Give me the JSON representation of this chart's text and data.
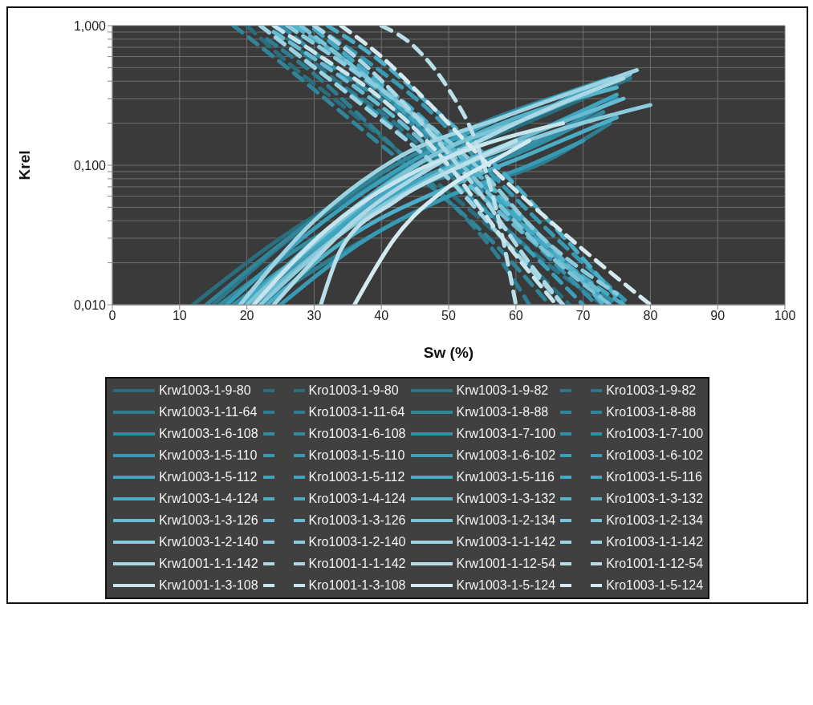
{
  "chart_data": {
    "type": "line",
    "xlabel": "Sw (%)",
    "ylabel": "Krel",
    "log": "y",
    "grid": true,
    "legend": "bottom",
    "marker": "none",
    "xlim": [
      0,
      100
    ],
    "xticks": [
      0,
      10,
      20,
      30,
      40,
      50,
      60,
      70,
      80,
      90,
      100
    ],
    "ylim": [
      0.01,
      1
    ],
    "yticks": [
      {
        "value": 0.01,
        "label": "0,010"
      },
      {
        "value": 0.02,
        "label": null
      },
      {
        "value": 0.03,
        "label": null
      },
      {
        "value": 0.04,
        "label": null
      },
      {
        "value": 0.05,
        "label": null
      },
      {
        "value": 0.06,
        "label": null
      },
      {
        "value": 0.07,
        "label": null
      },
      {
        "value": 0.08,
        "label": null
      },
      {
        "value": 0.09,
        "label": null
      },
      {
        "value": 0.1,
        "label": "0,100"
      },
      {
        "value": 0.2,
        "label": null
      },
      {
        "value": 0.3,
        "label": null
      },
      {
        "value": 0.4,
        "label": null
      },
      {
        "value": 0.5,
        "label": null
      },
      {
        "value": 0.6,
        "label": null
      },
      {
        "value": 0.7,
        "label": null
      },
      {
        "value": 0.8,
        "label": null
      },
      {
        "value": 0.9,
        "label": null
      },
      {
        "value": 1,
        "label": "1,000"
      }
    ],
    "series": [
      {
        "name": "Krw1003-1-9-80",
        "color": "#2a6e7e",
        "line_style": "solid",
        "x": [
          12,
          25,
          40,
          55,
          76
        ],
        "values": [
          0.01,
          0.03,
          0.08,
          0.15,
          0.4
        ]
      },
      {
        "name": "Kro1003-1-9-80",
        "color": "#2a6e7e",
        "line_style": "dashed",
        "x": [
          20,
          27,
          35,
          45,
          55,
          68
        ],
        "values": [
          1,
          0.5,
          0.25,
          0.1,
          0.04,
          0.01
        ]
      },
      {
        "name": "Krw1003-1-9-82",
        "color": "#2d7687",
        "line_style": "solid",
        "x": [
          15,
          30,
          45,
          60,
          77
        ],
        "values": [
          0.01,
          0.04,
          0.1,
          0.2,
          0.42
        ]
      },
      {
        "name": "Kro1003-1-9-82",
        "color": "#2d7687",
        "line_style": "dashed",
        "x": [
          24,
          32,
          42,
          52,
          62,
          73
        ],
        "values": [
          1,
          0.45,
          0.2,
          0.07,
          0.025,
          0.01
        ]
      },
      {
        "name": "Krw1003-1-11-64",
        "color": "#2f7d90",
        "line_style": "solid",
        "x": [
          22,
          35,
          50,
          65,
          74
        ],
        "values": [
          0.01,
          0.025,
          0.06,
          0.11,
          0.2
        ]
      },
      {
        "name": "Kro1003-1-11-64",
        "color": "#2f7d90",
        "line_style": "dashed",
        "x": [
          23,
          30,
          38,
          48,
          58,
          62
        ],
        "values": [
          0.8,
          0.45,
          0.2,
          0.07,
          0.02,
          0.01
        ]
      },
      {
        "name": "Krw1003-1-8-88",
        "color": "#318598",
        "line_style": "solid",
        "x": [
          14,
          28,
          42,
          55,
          72
        ],
        "values": [
          0.01,
          0.035,
          0.1,
          0.2,
          0.38
        ]
      },
      {
        "name": "Kro1003-1-8-88",
        "color": "#318598",
        "line_style": "dashed",
        "x": [
          18,
          26,
          36,
          46,
          56,
          65
        ],
        "values": [
          1,
          0.5,
          0.2,
          0.08,
          0.03,
          0.01
        ]
      },
      {
        "name": "Krw1003-1-6-108",
        "color": "#338ca0",
        "line_style": "solid",
        "x": [
          16,
          30,
          45,
          60,
          73
        ],
        "values": [
          0.01,
          0.03,
          0.07,
          0.12,
          0.24
        ]
      },
      {
        "name": "Kro1003-1-6-108",
        "color": "#338ca0",
        "line_style": "dashed",
        "x": [
          28,
          36,
          45,
          55,
          65,
          75
        ],
        "values": [
          1,
          0.5,
          0.2,
          0.07,
          0.025,
          0.01
        ]
      },
      {
        "name": "Krw1003-1-7-100",
        "color": "#3591a8",
        "line_style": "solid",
        "x": [
          18,
          32,
          48,
          62,
          75
        ],
        "values": [
          0.01,
          0.03,
          0.08,
          0.14,
          0.3
        ]
      },
      {
        "name": "Kro1003-1-7-100",
        "color": "#3591a8",
        "line_style": "dashed",
        "x": [
          25,
          33,
          42,
          52,
          62,
          72
        ],
        "values": [
          1,
          0.5,
          0.25,
          0.09,
          0.03,
          0.01
        ]
      },
      {
        "name": "Krw1003-1-5-110",
        "color": "#3899b2",
        "line_style": "solid",
        "x": [
          25,
          38,
          50,
          62,
          70
        ],
        "values": [
          0.01,
          0.03,
          0.06,
          0.1,
          0.15
        ]
      },
      {
        "name": "Kro1003-1-5-110",
        "color": "#3899b2",
        "line_style": "dashed",
        "x": [
          30,
          38,
          47,
          56,
          66,
          77
        ],
        "values": [
          1,
          0.55,
          0.25,
          0.09,
          0.03,
          0.01
        ]
      },
      {
        "name": "Krw1003-1-6-102",
        "color": "#3a9fb9",
        "line_style": "solid",
        "x": [
          17,
          30,
          45,
          58,
          74
        ],
        "values": [
          0.01,
          0.035,
          0.11,
          0.22,
          0.42
        ]
      },
      {
        "name": "Kro1003-1-6-102",
        "color": "#3a9fb9",
        "line_style": "dashed",
        "x": [
          22,
          30,
          40,
          50,
          60,
          70
        ],
        "values": [
          1,
          0.5,
          0.22,
          0.08,
          0.03,
          0.01
        ]
      },
      {
        "name": "Krw1003-1-5-112",
        "color": "#3ea5bf",
        "line_style": "solid",
        "x": [
          20,
          32,
          46,
          60,
          75
        ],
        "values": [
          0.01,
          0.03,
          0.08,
          0.15,
          0.32
        ]
      },
      {
        "name": "Kro1003-1-5-112",
        "color": "#3ea5bf",
        "line_style": "dashed",
        "x": [
          26,
          34,
          43,
          53,
          63,
          74
        ],
        "values": [
          1,
          0.55,
          0.25,
          0.09,
          0.03,
          0.01
        ]
      },
      {
        "name": "Krw1003-1-5-116",
        "color": "#42aac4",
        "line_style": "solid",
        "x": [
          19,
          33,
          47,
          60,
          73
        ],
        "values": [
          0.01,
          0.035,
          0.1,
          0.2,
          0.4
        ]
      },
      {
        "name": "Kro1003-1-5-116",
        "color": "#42aac4",
        "line_style": "dashed",
        "x": [
          30,
          37,
          46,
          55,
          65,
          76
        ],
        "values": [
          0.95,
          0.5,
          0.22,
          0.08,
          0.025,
          0.01
        ]
      },
      {
        "name": "Krw1003-1-4-124",
        "color": "#4aaec7",
        "line_style": "solid",
        "x": [
          23,
          35,
          50,
          62,
          75
        ],
        "values": [
          0.01,
          0.03,
          0.07,
          0.12,
          0.22
        ]
      },
      {
        "name": "Kro1003-1-4-124",
        "color": "#4aaec7",
        "line_style": "dashed",
        "x": [
          32,
          40,
          48,
          57,
          66,
          76
        ],
        "values": [
          1,
          0.55,
          0.25,
          0.1,
          0.035,
          0.01
        ]
      },
      {
        "name": "Krw1003-1-3-132",
        "color": "#55b3ca",
        "line_style": "solid",
        "x": [
          20,
          32,
          45,
          58,
          75
        ],
        "values": [
          0.01,
          0.035,
          0.1,
          0.2,
          0.36
        ]
      },
      {
        "name": "Kro1003-1-3-132",
        "color": "#55b3ca",
        "line_style": "dashed",
        "x": [
          27,
          35,
          44,
          54,
          64,
          73
        ],
        "values": [
          1,
          0.55,
          0.25,
          0.09,
          0.03,
          0.01
        ]
      },
      {
        "name": "Krw1003-1-3-126",
        "color": "#68bbd0",
        "line_style": "solid",
        "x": [
          21,
          33,
          47,
          60,
          76
        ],
        "values": [
          0.01,
          0.03,
          0.08,
          0.15,
          0.3
        ]
      },
      {
        "name": "Kro1003-1-3-126",
        "color": "#68bbd0",
        "line_style": "dashed",
        "x": [
          24,
          32,
          42,
          52,
          62,
          73
        ],
        "values": [
          0.9,
          0.5,
          0.22,
          0.08,
          0.03,
          0.012
        ]
      },
      {
        "name": "Krw1003-1-2-134",
        "color": "#7bc3d6",
        "line_style": "solid",
        "x": [
          20,
          34,
          48,
          62,
          77
        ],
        "values": [
          0.01,
          0.04,
          0.12,
          0.22,
          0.45
        ]
      },
      {
        "name": "Kro1003-1-2-134",
        "color": "#7bc3d6",
        "line_style": "dashed",
        "x": [
          28,
          36,
          46,
          55,
          64,
          74
        ],
        "values": [
          1,
          0.5,
          0.2,
          0.07,
          0.025,
          0.01
        ]
      },
      {
        "name": "Krw1003-1-2-140",
        "color": "#8ccbdc",
        "line_style": "solid",
        "x": [
          22,
          35,
          50,
          65,
          80
        ],
        "values": [
          0.01,
          0.035,
          0.09,
          0.17,
          0.27
        ]
      },
      {
        "name": "Kro1003-1-2-140",
        "color": "#8ccbdc",
        "line_style": "dashed",
        "x": [
          26,
          34,
          44,
          54,
          64,
          75
        ],
        "values": [
          1,
          0.55,
          0.25,
          0.1,
          0.03,
          0.012
        ]
      },
      {
        "name": "Krw1003-1-1-142",
        "color": "#9dd2e1",
        "line_style": "solid",
        "x": [
          19,
          30,
          42,
          58,
          78
        ],
        "values": [
          0.01,
          0.04,
          0.11,
          0.22,
          0.48
        ]
      },
      {
        "name": "Kro1003-1-1-142",
        "color": "#9dd2e1",
        "line_style": "dashed",
        "x": [
          22,
          29,
          38,
          48,
          58,
          67
        ],
        "values": [
          1,
          0.55,
          0.25,
          0.1,
          0.03,
          0.01
        ]
      },
      {
        "name": "Krw1001-1-1-142",
        "color": "#acd8e5",
        "line_style": "solid",
        "x": [
          24,
          36,
          48,
          60,
          76
        ],
        "values": [
          0.01,
          0.04,
          0.1,
          0.2,
          0.42
        ]
      },
      {
        "name": "Kro1001-1-1-142",
        "color": "#acd8e5",
        "line_style": "dashed",
        "x": [
          30,
          38,
          46,
          55,
          62,
          67
        ],
        "values": [
          1,
          0.5,
          0.2,
          0.06,
          0.02,
          0.01
        ]
      },
      {
        "name": "Krw1001-1-12-54",
        "color": "#bbdfe9",
        "line_style": "solid",
        "x": [
          31,
          34,
          42,
          52,
          60
        ],
        "values": [
          0.01,
          0.025,
          0.055,
          0.1,
          0.15
        ]
      },
      {
        "name": "Kro1001-1-12-54",
        "color": "#bbdfe9",
        "line_style": "dashed",
        "x": [
          40,
          45,
          50,
          54,
          57,
          60
        ],
        "values": [
          1,
          0.7,
          0.35,
          0.15,
          0.05,
          0.01
        ]
      },
      {
        "name": "Krw1001-1-3-108",
        "color": "#c8e4ed",
        "line_style": "solid",
        "x": [
          21,
          32,
          45,
          55,
          67
        ],
        "values": [
          0.01,
          0.035,
          0.09,
          0.14,
          0.2
        ]
      },
      {
        "name": "Kro1001-1-3-108",
        "color": "#c8e4ed",
        "line_style": "dashed",
        "x": [
          24,
          31,
          40,
          50,
          58,
          66
        ],
        "values": [
          1,
          0.6,
          0.3,
          0.1,
          0.03,
          0.01
        ]
      },
      {
        "name": "Krw1003-1-5-124",
        "color": "#d4e9f0",
        "line_style": "solid",
        "x": [
          36,
          42,
          50,
          57,
          62
        ],
        "values": [
          0.01,
          0.03,
          0.07,
          0.11,
          0.15
        ]
      },
      {
        "name": "Kro1003-1-5-124",
        "color": "#d4e9f0",
        "line_style": "dashed",
        "x": [
          34,
          40,
          47,
          56,
          68,
          80
        ],
        "values": [
          1,
          0.6,
          0.28,
          0.1,
          0.03,
          0.01
        ]
      }
    ]
  }
}
